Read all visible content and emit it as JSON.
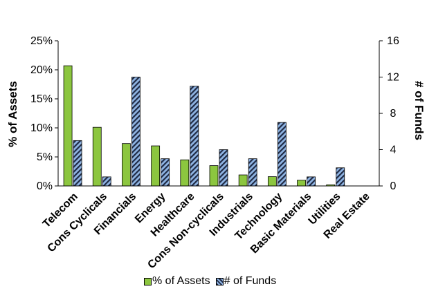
{
  "chart_data": {
    "type": "bar",
    "categories": [
      "Telecom",
      "Cons Cyclicals",
      "Financials",
      "Energy",
      "Healthcare",
      "Cons Non-cyclicals",
      "Industrials",
      "Technology",
      "Basic Materials",
      "Utilities",
      "Real Estate"
    ],
    "series": [
      {
        "name": "% of Assets",
        "axis": "left",
        "values": [
          20.7,
          10.1,
          7.3,
          6.9,
          4.5,
          3.5,
          1.9,
          1.6,
          1.0,
          0.2,
          0.0
        ]
      },
      {
        "name": "# of Funds",
        "axis": "right",
        "values": [
          5,
          1,
          12,
          3,
          11,
          4,
          3,
          7,
          1,
          2,
          0
        ]
      }
    ],
    "ylabel": "% of Assets",
    "y2label": "# of Funds",
    "ylim": [
      0,
      25
    ],
    "y2lim": [
      0,
      16
    ],
    "yticks": [
      "0%",
      "5%",
      "10%",
      "15%",
      "20%",
      "25%"
    ],
    "y2ticks": [
      "0",
      "4",
      "8",
      "12",
      "16"
    ],
    "grid": false,
    "legend": "bottom",
    "colors": {
      "assets": "#8cc63f",
      "funds_light": "#8fb4e3",
      "funds_dark": "#1f2a44"
    }
  }
}
